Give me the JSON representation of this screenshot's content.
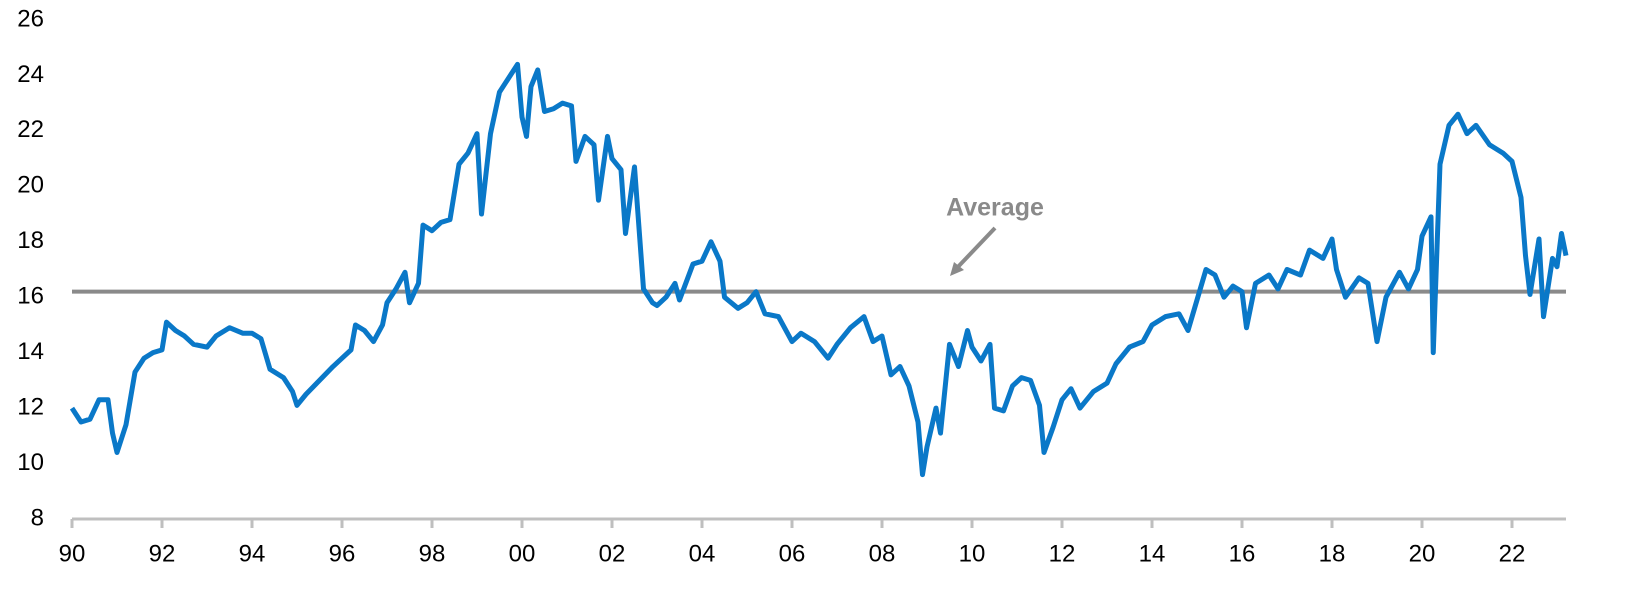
{
  "chart_data": {
    "type": "line",
    "annotation": "Average",
    "average": 16.2,
    "xlim": [
      1990,
      2023.2
    ],
    "ylim": [
      8,
      26
    ],
    "yticks": [
      8,
      10,
      12,
      14,
      16,
      18,
      20,
      22,
      24,
      26
    ],
    "xticks": [
      {
        "value": 1990,
        "label": "90"
      },
      {
        "value": 1992,
        "label": "92"
      },
      {
        "value": 1994,
        "label": "94"
      },
      {
        "value": 1996,
        "label": "96"
      },
      {
        "value": 1998,
        "label": "98"
      },
      {
        "value": 2000,
        "label": "00"
      },
      {
        "value": 2002,
        "label": "02"
      },
      {
        "value": 2004,
        "label": "04"
      },
      {
        "value": 2006,
        "label": "06"
      },
      {
        "value": 2008,
        "label": "08"
      },
      {
        "value": 2010,
        "label": "10"
      },
      {
        "value": 2012,
        "label": "12"
      },
      {
        "value": 2014,
        "label": "14"
      },
      {
        "value": 2016,
        "label": "16"
      },
      {
        "value": 2018,
        "label": "18"
      },
      {
        "value": 2020,
        "label": "20"
      },
      {
        "value": 2022,
        "label": "22"
      }
    ],
    "x": [
      1990.0,
      1990.2,
      1990.4,
      1990.6,
      1990.8,
      1990.9,
      1991.0,
      1991.2,
      1991.4,
      1991.6,
      1991.8,
      1992.0,
      1992.1,
      1992.3,
      1992.5,
      1992.7,
      1993.0,
      1993.2,
      1993.5,
      1993.8,
      1994.0,
      1994.2,
      1994.4,
      1994.7,
      1994.9,
      1995.0,
      1995.2,
      1995.5,
      1995.8,
      1996.0,
      1996.2,
      1996.3,
      1996.5,
      1996.7,
      1996.9,
      1997.0,
      1997.2,
      1997.4,
      1997.5,
      1997.7,
      1997.8,
      1998.0,
      1998.2,
      1998.4,
      1998.6,
      1998.8,
      1999.0,
      1999.1,
      1999.3,
      1999.5,
      1999.7,
      1999.9,
      2000.0,
      2000.1,
      2000.2,
      2000.35,
      2000.5,
      2000.7,
      2000.9,
      2001.1,
      2001.2,
      2001.4,
      2001.6,
      2001.7,
      2001.9,
      2002.0,
      2002.2,
      2002.3,
      2002.5,
      2002.7,
      2002.9,
      2003.0,
      2003.2,
      2003.4,
      2003.5,
      2003.8,
      2004.0,
      2004.2,
      2004.4,
      2004.5,
      2004.8,
      2005.0,
      2005.2,
      2005.4,
      2005.7,
      2006.0,
      2006.2,
      2006.5,
      2006.8,
      2007.0,
      2007.3,
      2007.6,
      2007.8,
      2008.0,
      2008.2,
      2008.4,
      2008.6,
      2008.8,
      2008.9,
      2009.0,
      2009.2,
      2009.3,
      2009.5,
      2009.7,
      2009.9,
      2010.0,
      2010.2,
      2010.4,
      2010.5,
      2010.7,
      2010.9,
      2011.1,
      2011.3,
      2011.5,
      2011.6,
      2011.8,
      2012.0,
      2012.2,
      2012.4,
      2012.7,
      2013.0,
      2013.2,
      2013.5,
      2013.8,
      2014.0,
      2014.3,
      2014.6,
      2014.8,
      2015.0,
      2015.2,
      2015.4,
      2015.6,
      2015.8,
      2016.0,
      2016.1,
      2016.3,
      2016.6,
      2016.8,
      2017.0,
      2017.3,
      2017.5,
      2017.8,
      2018.0,
      2018.1,
      2018.3,
      2018.6,
      2018.8,
      2019.0,
      2019.2,
      2019.5,
      2019.7,
      2019.9,
      2020.0,
      2020.2,
      2020.25,
      2020.4,
      2020.6,
      2020.8,
      2021.0,
      2021.2,
      2021.5,
      2021.8,
      2022.0,
      2022.2,
      2022.3,
      2022.4,
      2022.6,
      2022.7,
      2022.9,
      2023.0,
      2023.1,
      2023.2
    ],
    "series": [
      {
        "color": "#0a78c8",
        "values": [
          12.0,
          11.5,
          11.6,
          12.3,
          12.3,
          11.1,
          10.4,
          11.4,
          13.3,
          13.8,
          14.0,
          14.1,
          15.1,
          14.8,
          14.6,
          14.3,
          14.2,
          14.6,
          14.9,
          14.7,
          14.7,
          14.5,
          13.4,
          13.1,
          12.6,
          12.1,
          12.5,
          13.0,
          13.5,
          13.8,
          14.1,
          15.0,
          14.8,
          14.4,
          15.0,
          15.8,
          16.3,
          16.9,
          15.8,
          16.5,
          18.6,
          18.4,
          18.7,
          18.8,
          20.8,
          21.2,
          21.9,
          19.0,
          21.9,
          23.4,
          23.9,
          24.4,
          22.5,
          21.8,
          23.6,
          24.2,
          22.7,
          22.8,
          23.0,
          22.9,
          20.9,
          21.8,
          21.5,
          19.5,
          21.8,
          21.0,
          20.6,
          18.3,
          20.7,
          16.3,
          15.8,
          15.7,
          16.0,
          16.5,
          15.9,
          17.2,
          17.3,
          18.0,
          17.3,
          16.0,
          15.6,
          15.8,
          16.2,
          15.4,
          15.3,
          14.4,
          14.7,
          14.4,
          13.8,
          14.3,
          14.9,
          15.3,
          14.4,
          14.6,
          13.2,
          13.5,
          12.8,
          11.5,
          9.6,
          10.6,
          12.0,
          11.1,
          14.3,
          13.5,
          14.8,
          14.2,
          13.7,
          14.3,
          12.0,
          11.9,
          12.8,
          13.1,
          13.0,
          12.1,
          10.4,
          11.3,
          12.3,
          12.7,
          12.0,
          12.6,
          12.9,
          13.6,
          14.2,
          14.4,
          15.0,
          15.3,
          15.4,
          14.8,
          15.9,
          17.0,
          16.8,
          16.0,
          16.4,
          16.2,
          14.9,
          16.5,
          16.8,
          16.3,
          17.0,
          16.8,
          17.7,
          17.4,
          18.1,
          17.0,
          16.0,
          16.7,
          16.5,
          14.4,
          16.0,
          16.9,
          16.3,
          17.0,
          18.2,
          18.9,
          14.0,
          20.8,
          22.2,
          22.6,
          21.9,
          22.2,
          21.5,
          21.2,
          20.9,
          19.6,
          17.5,
          16.1,
          18.1,
          15.3,
          17.4,
          17.1,
          18.3,
          17.5
        ]
      }
    ]
  }
}
